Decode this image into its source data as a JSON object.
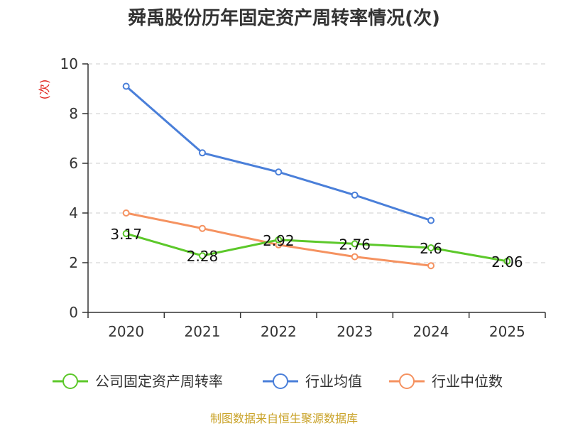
{
  "chart_data": {
    "type": "line",
    "title": "舜禹股份历年固定资产周转率情况(次)",
    "ylabel": "(次)",
    "categories": [
      "2020",
      "2021",
      "2022",
      "2023",
      "2024",
      "2025"
    ],
    "ylim": [
      0,
      10
    ],
    "yticks": [
      0,
      2,
      4,
      6,
      8,
      10
    ],
    "grid": true,
    "legend_position": "bottom",
    "series": [
      {
        "name": "公司固定资产周转率",
        "color": "#5cc82a",
        "values": [
          3.17,
          2.28,
          2.92,
          2.76,
          2.6,
          2.06
        ],
        "labels": [
          "3.17",
          "2.28",
          "2.92",
          "2.76",
          "2.6",
          "2.06"
        ]
      },
      {
        "name": "行业均值",
        "color": "#4a7fd9",
        "values": [
          9.1,
          6.42,
          5.65,
          4.72,
          3.7,
          null
        ]
      },
      {
        "name": "行业中位数",
        "color": "#f59260",
        "values": [
          4.0,
          3.38,
          2.72,
          2.24,
          1.88,
          null
        ]
      }
    ],
    "source": "制图数据来自恒生聚源数据库"
  }
}
